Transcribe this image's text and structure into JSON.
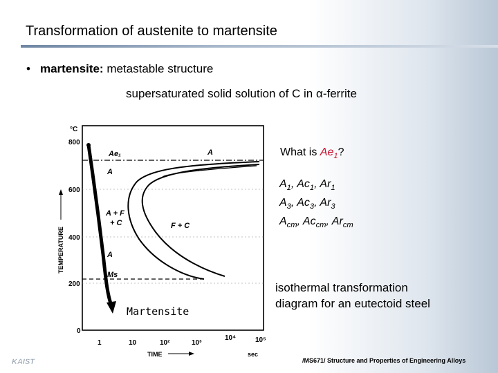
{
  "slide": {
    "title": "Transformation of austenite to martensite",
    "bullet_dot": "•",
    "bullet_term": "martensite:",
    "bullet_text": " metastable structure",
    "subline": "supersaturated solid solution of C in α-ferrite"
  },
  "notes": {
    "question_prefix": "What is ",
    "question_term": "Ae",
    "question_term_sub": "1",
    "question_suffix": "?",
    "row1": {
      "a": "A",
      "a_sub": "1",
      "b": ", Ac",
      "b_sub": "1",
      "c": ", Ar",
      "c_sub": "1"
    },
    "row2": {
      "a": "A",
      "a_sub": "3",
      "b": ", Ac",
      "b_sub": "3",
      "c": ", Ar",
      "c_sub": "3"
    },
    "row3": {
      "a": "A",
      "a_sub": "cm",
      "b": ", Ac",
      "b_sub": "cm",
      "c": ", Ar",
      "c_sub": "cm"
    },
    "caption_line1": "isothermal transformation",
    "caption_line2": "diagram for an eutectoid steel"
  },
  "footer": "/MS671/ Structure and Properties of Engineering Alloys",
  "logo_text": "KAIST",
  "diagram": {
    "y_unit": "°C",
    "y_ticks": [
      "800",
      "600",
      "400",
      "200",
      "0"
    ],
    "y_label": "TEMPERATURE",
    "x_ticks": [
      "1",
      "10",
      "10²",
      "10³",
      "10⁴",
      "10⁵"
    ],
    "x_label": "TIME",
    "x_unit": "sec",
    "labels": {
      "ae1": "Ae₁",
      "a_top": "A",
      "a_upper": "A",
      "a_f_c": "A + F",
      "plus_c": "+ C",
      "f_c": "F + C",
      "a_lower": "A",
      "ms": "Ms",
      "martensite": "Martensite"
    }
  }
}
